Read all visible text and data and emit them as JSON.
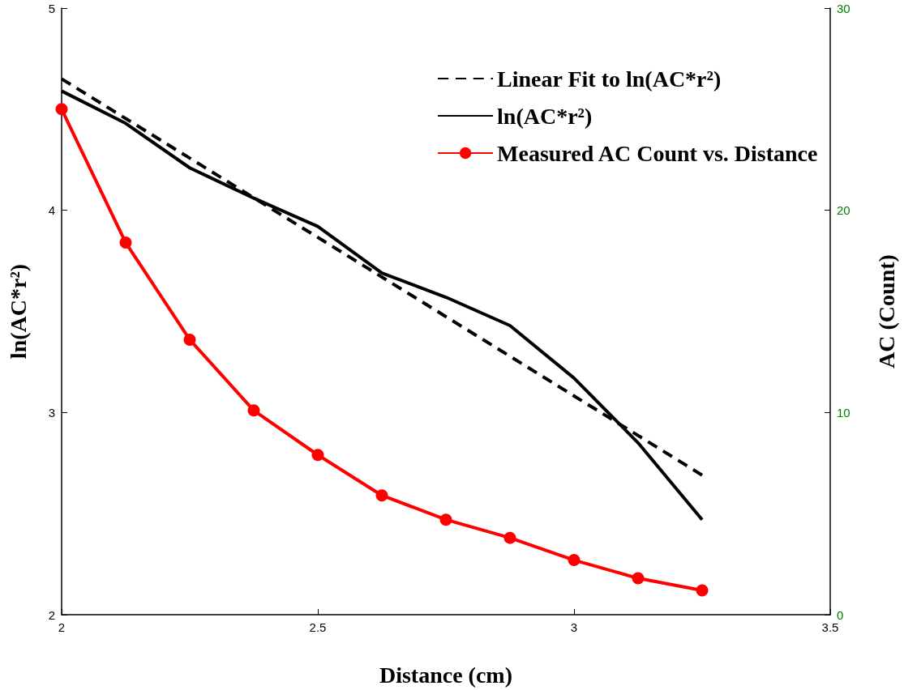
{
  "chart_data": {
    "type": "line",
    "xlabel": "Distance (cm)",
    "ylabel": "ln(AC*r²)",
    "y2label": "AC (Count)",
    "xlim": [
      2,
      3.5
    ],
    "xticks": [
      2,
      2.5,
      3,
      3.5
    ],
    "ylim": [
      2,
      5
    ],
    "yticks": [
      2,
      3,
      4,
      5
    ],
    "y2lim": [
      0,
      30
    ],
    "y2ticks": [
      0,
      10,
      20,
      30
    ],
    "grid": false,
    "legend": "top right",
    "series": [
      {
        "name": "Linear Fit to ln(AC*r²)",
        "color": "#000000",
        "line_style": "dashed",
        "marker": "none",
        "x": [
          2,
          3.25
        ],
        "values": [
          4.65,
          2.69
        ]
      },
      {
        "name": "ln(AC*r²)",
        "color": "#000000",
        "line_style": "solid",
        "marker": "none",
        "x": [
          2,
          2.125,
          2.25,
          2.375,
          2.5,
          2.625,
          2.75,
          2.875,
          3,
          3.125,
          3.25
        ],
        "values": [
          4.59,
          4.43,
          4.21,
          4.06,
          3.92,
          3.69,
          3.57,
          3.43,
          3.17,
          2.85,
          2.47
        ]
      },
      {
        "name": "Measured AC Count vs. Distance",
        "color": "#ff0000",
        "line_style": "solid",
        "marker": "circle",
        "axis": "y2",
        "x": [
          2,
          2.125,
          2.25,
          2.375,
          2.5,
          2.625,
          2.75,
          2.875,
          3,
          3.125,
          3.25
        ],
        "values": [
          25,
          18.4,
          13.6,
          10.1,
          7.9,
          5.9,
          4.7,
          3.8,
          2.7,
          1.8,
          1.2
        ]
      }
    ]
  }
}
